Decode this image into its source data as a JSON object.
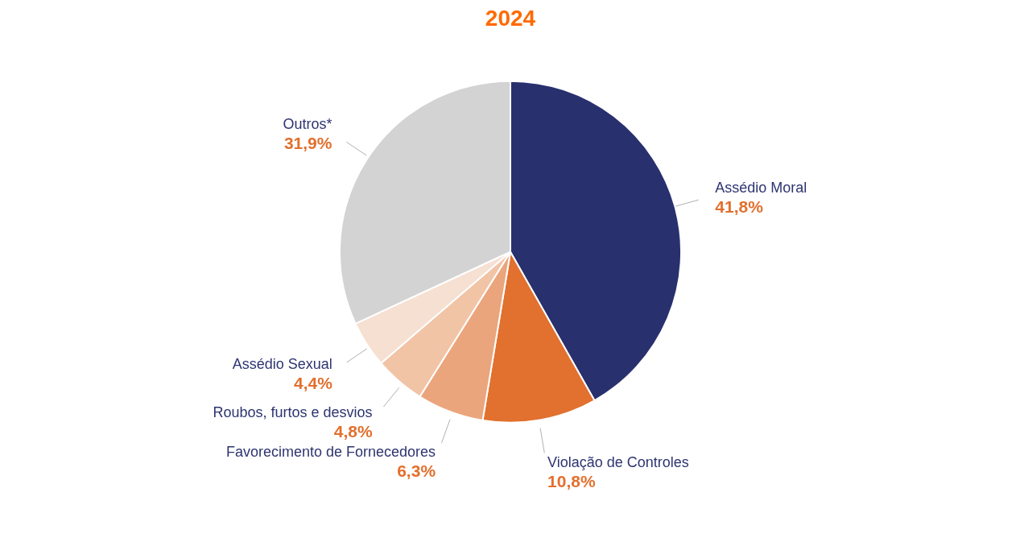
{
  "chart_data": {
    "type": "pie",
    "title": "2024",
    "categories": [
      "Assédio Moral",
      "Violação de Controles",
      "Favorecimento de Fornecedores",
      "Roubos, furtos e desvios",
      "Assédio Sexual",
      "Outros*"
    ],
    "values": [
      41.8,
      10.8,
      6.3,
      4.8,
      4.4,
      31.9
    ],
    "colors": [
      "#28306e",
      "#e2702e",
      "#eba57c",
      "#f1c4a6",
      "#f6e0d2",
      "#d3d3d3"
    ],
    "value_labels": [
      "41,8%",
      "10,8%",
      "6,3%",
      "4,8%",
      "4,4%",
      "31,9%"
    ]
  }
}
